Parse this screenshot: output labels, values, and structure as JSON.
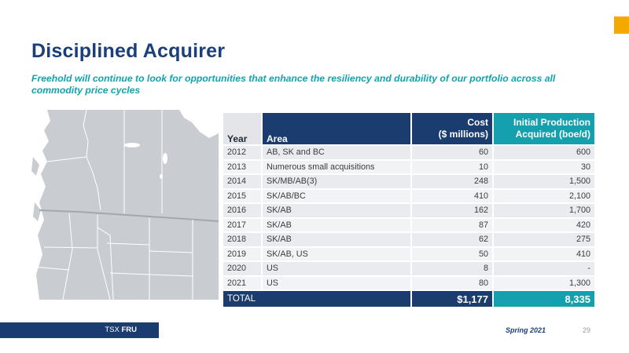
{
  "slide": {
    "title": "Disciplined Acquirer",
    "subtitle": "Freehold will continue to look for opportunities that enhance the resiliency and durability of our portfolio across all commodity price cycles"
  },
  "table": {
    "headers": {
      "year": "Year",
      "area": "Area",
      "cost_line1": "Cost",
      "cost_line2": "($ millions)",
      "prod_line1": "Initial Production",
      "prod_line2_bold": "Acquired",
      "prod_line2_unit": "(boe/d)"
    },
    "rows": [
      {
        "year": "2012",
        "area": "AB, SK and BC",
        "cost": "60",
        "prod": "600"
      },
      {
        "year": "2013",
        "area": "Numerous small acquisitions",
        "cost": "10",
        "prod": "30"
      },
      {
        "year": "2014",
        "area": "SK/MB/AB(3)",
        "cost": "248",
        "prod": "1,500"
      },
      {
        "year": "2015",
        "area": "SK/AB/BC",
        "cost": "410",
        "prod": "2,100"
      },
      {
        "year": "2016",
        "area": "SK/AB",
        "cost": "162",
        "prod": "1,700"
      },
      {
        "year": "2017",
        "area": "SK/AB",
        "cost": "87",
        "prod": "420"
      },
      {
        "year": "2018",
        "area": "SK/AB",
        "cost": "62",
        "prod": "275"
      },
      {
        "year": "2019",
        "area": "SK/AB, US",
        "cost": "50",
        "prod": "410"
      },
      {
        "year": "2020",
        "area": "US",
        "cost": "8",
        "prod": "-"
      },
      {
        "year": "2021",
        "area": "US",
        "cost": "80",
        "prod": "1,300"
      }
    ],
    "total": {
      "label": "TOTAL",
      "cost": "$1,177",
      "prod": "8,335"
    }
  },
  "footer": {
    "ticker_prefix": "TSX",
    "ticker_symbol": "FRU",
    "date": "Spring 2021",
    "page": "29"
  },
  "colors": {
    "navy": "#1b3c6e",
    "teal": "#14a0ad",
    "accent": "#f5a800"
  }
}
